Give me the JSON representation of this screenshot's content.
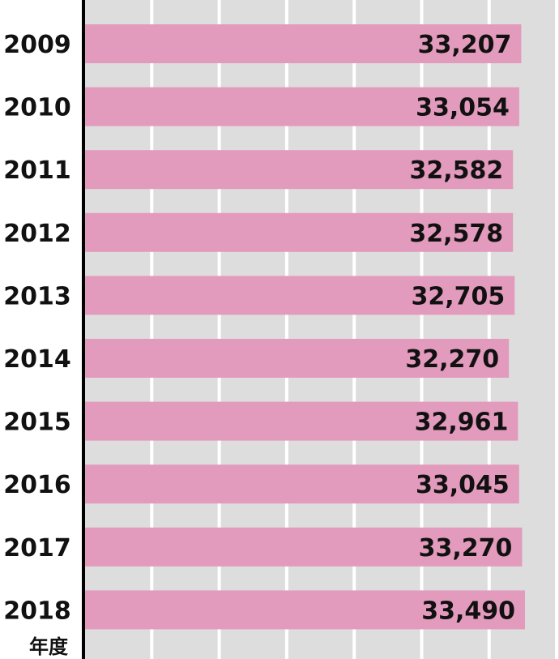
{
  "chart_data": {
    "type": "bar",
    "orientation": "horizontal",
    "categories": [
      "2009",
      "2010",
      "2011",
      "2012",
      "2013",
      "2014",
      "2015",
      "2016",
      "2017",
      "2018"
    ],
    "values": [
      33207,
      33054,
      32582,
      32578,
      32705,
      32270,
      32961,
      33045,
      33270,
      33490
    ],
    "value_labels": [
      "33,207",
      "33,054",
      "32,582",
      "32,578",
      "32,705",
      "32,270",
      "32,961",
      "33,045",
      "33,270",
      "33,490"
    ],
    "category_axis_label": "年度",
    "grid": true,
    "colors": {
      "bar": "#e39bbd",
      "plot_background": "#dddddd",
      "gridline": "#ffffff",
      "axis": "#000000"
    }
  }
}
